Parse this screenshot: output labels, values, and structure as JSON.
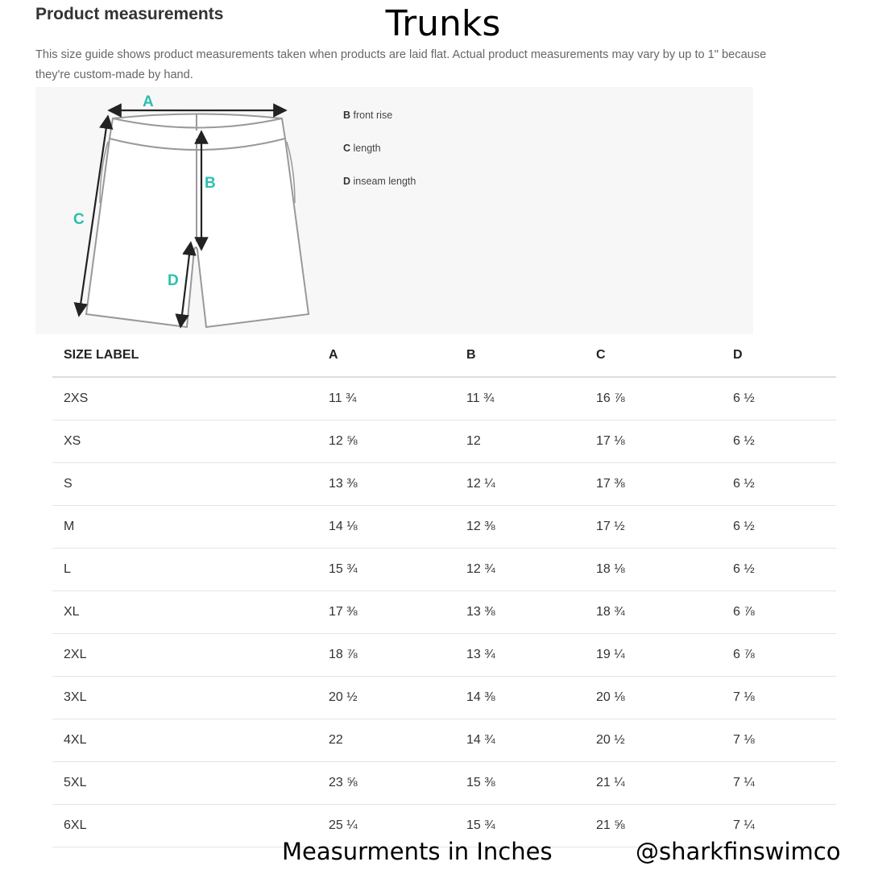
{
  "header": {
    "title": "Product measurements",
    "overlay_title": "Trunks",
    "description": "This size guide shows product measurements taken when products are laid flat. Actual product measurements may vary by up to 1\" because they're custom-made by hand."
  },
  "diagram": {
    "labels": {
      "a": "A",
      "b": "B",
      "c": "C",
      "d": "D"
    },
    "legend": [
      {
        "key": "B",
        "text": "front rise"
      },
      {
        "key": "C",
        "text": "length"
      },
      {
        "key": "D",
        "text": "inseam length"
      }
    ],
    "accent_color": "#2bbfae"
  },
  "table": {
    "headers": [
      "SIZE LABEL",
      "A",
      "B",
      "C",
      "D"
    ],
    "rows": [
      [
        "2XS",
        "11 ¾",
        "11 ¾",
        "16 ⅞",
        "6 ½"
      ],
      [
        "XS",
        "12 ⅝",
        "12",
        "17 ⅛",
        "6 ½"
      ],
      [
        "S",
        "13 ⅜",
        "12 ¼",
        "17 ⅜",
        "6 ½"
      ],
      [
        "M",
        "14 ⅛",
        "12 ⅜",
        "17 ½",
        "6 ½"
      ],
      [
        "L",
        "15 ¾",
        "12 ¾",
        "18 ⅛",
        "6 ½"
      ],
      [
        "XL",
        "17 ⅜",
        "13 ⅜",
        "18 ¾",
        "6 ⅞"
      ],
      [
        "2XL",
        "18 ⅞",
        "13 ¾",
        "19 ¼",
        "6 ⅞"
      ],
      [
        "3XL",
        "20 ½",
        "14 ⅜",
        "20 ⅛",
        "7 ⅛"
      ],
      [
        "4XL",
        "22",
        "14 ¾",
        "20 ½",
        "7 ⅛"
      ],
      [
        "5XL",
        "23 ⅝",
        "15 ⅜",
        "21 ¼",
        "7 ¼"
      ],
      [
        "6XL",
        "25 ¼",
        "15 ¾",
        "21 ⅝",
        "7 ¼"
      ]
    ]
  },
  "footer": {
    "units": "Measurments in Inches",
    "handle": "@sharkfinswimco"
  }
}
